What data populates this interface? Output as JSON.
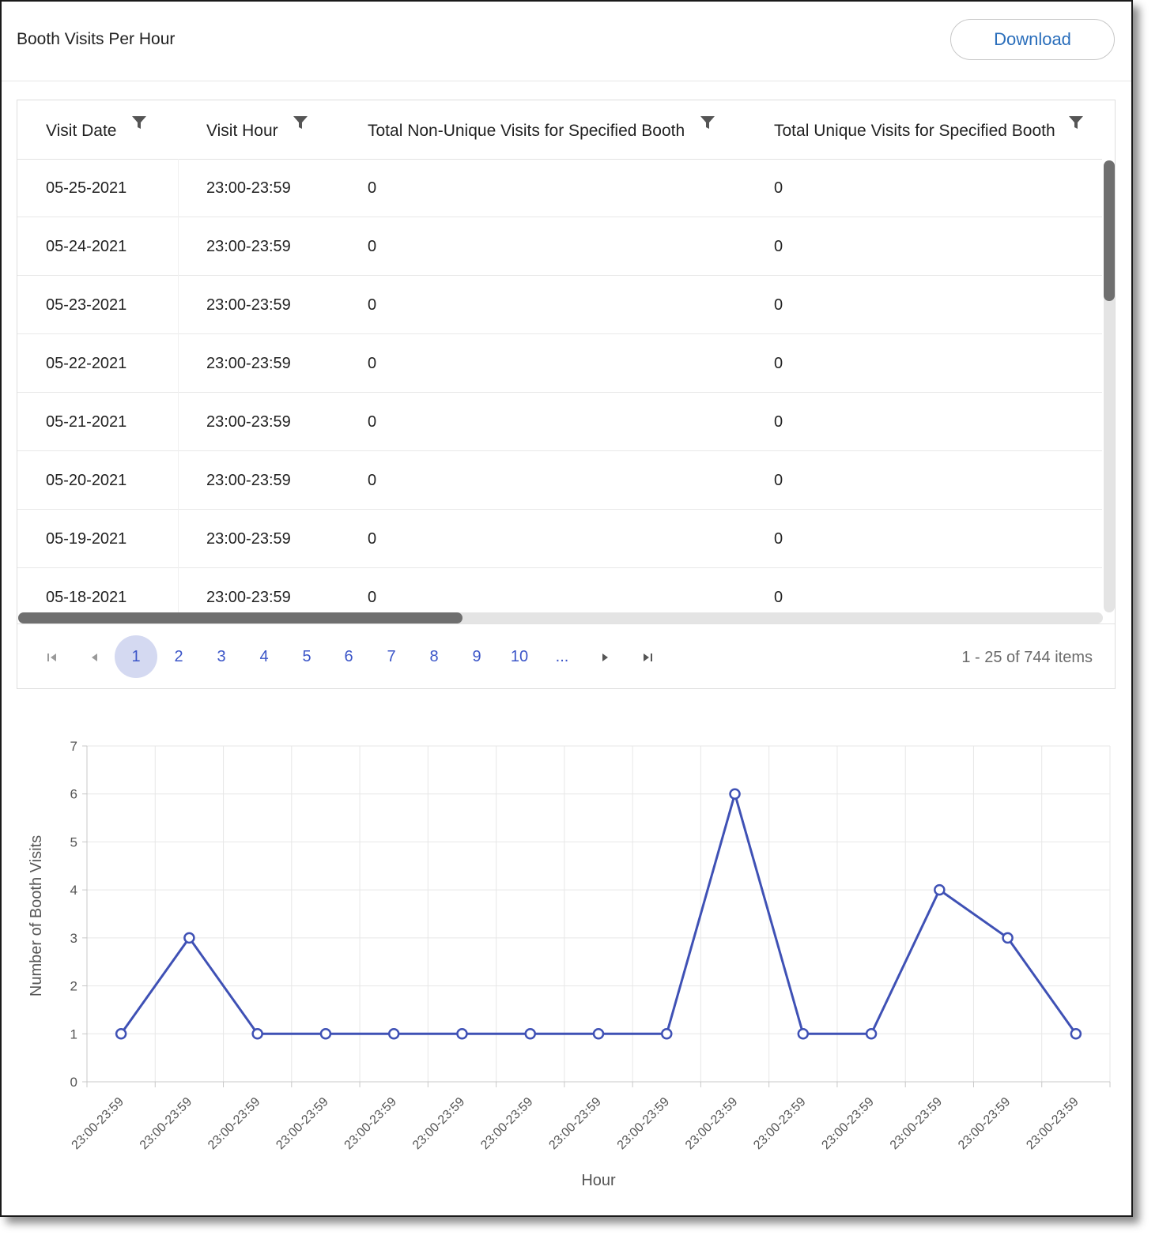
{
  "header": {
    "title": "Booth Visits Per Hour",
    "download_label": "Download"
  },
  "table": {
    "columns": [
      {
        "label": "Visit Date"
      },
      {
        "label": "Visit Hour"
      },
      {
        "label": "Total Non-Unique Visits for Specified Booth"
      },
      {
        "label": "Total Unique Visits for Specified Booth"
      }
    ],
    "rows": [
      {
        "date": "05-25-2021",
        "hour": "23:00-23:59",
        "non_unique": "0",
        "unique": "0"
      },
      {
        "date": "05-24-2021",
        "hour": "23:00-23:59",
        "non_unique": "0",
        "unique": "0"
      },
      {
        "date": "05-23-2021",
        "hour": "23:00-23:59",
        "non_unique": "0",
        "unique": "0"
      },
      {
        "date": "05-22-2021",
        "hour": "23:00-23:59",
        "non_unique": "0",
        "unique": "0"
      },
      {
        "date": "05-21-2021",
        "hour": "23:00-23:59",
        "non_unique": "0",
        "unique": "0"
      },
      {
        "date": "05-20-2021",
        "hour": "23:00-23:59",
        "non_unique": "0",
        "unique": "0"
      },
      {
        "date": "05-19-2021",
        "hour": "23:00-23:59",
        "non_unique": "0",
        "unique": "0"
      },
      {
        "date": "05-18-2021",
        "hour": "23:00-23:59",
        "non_unique": "0",
        "unique": "0"
      }
    ]
  },
  "pager": {
    "pages": [
      "1",
      "2",
      "3",
      "4",
      "5",
      "6",
      "7",
      "8",
      "9",
      "10",
      "..."
    ],
    "current_page": "1",
    "info": "1 - 25 of 744 items"
  },
  "colors": {
    "accent": "#3f51b5",
    "link": "#2a6ebb",
    "active_page_bg": "#d4d9f1"
  },
  "icons": [
    "filter-icon",
    "first-page-icon",
    "prev-page-icon",
    "next-page-icon",
    "last-page-icon"
  ],
  "chart_data": {
    "type": "line",
    "title": "",
    "xlabel": "Hour",
    "ylabel": "Number of Booth Visits",
    "x": [
      "23:00-23:59",
      "23:00-23:59",
      "23:00-23:59",
      "23:00-23:59",
      "23:00-23:59",
      "23:00-23:59",
      "23:00-23:59",
      "23:00-23:59",
      "23:00-23:59",
      "23:00-23:59",
      "23:00-23:59",
      "23:00-23:59",
      "23:00-23:59",
      "23:00-23:59",
      "23:00-23:59"
    ],
    "series": [
      {
        "values": [
          1,
          3,
          1,
          1,
          1,
          1,
          1,
          1,
          1,
          6,
          1,
          1,
          4,
          3,
          1
        ],
        "color": "#3f51b5"
      }
    ],
    "ylim": [
      0,
      7
    ],
    "yticks": [
      0,
      1,
      2,
      3,
      4,
      5,
      6,
      7
    ],
    "grid": true,
    "legend": "none"
  }
}
